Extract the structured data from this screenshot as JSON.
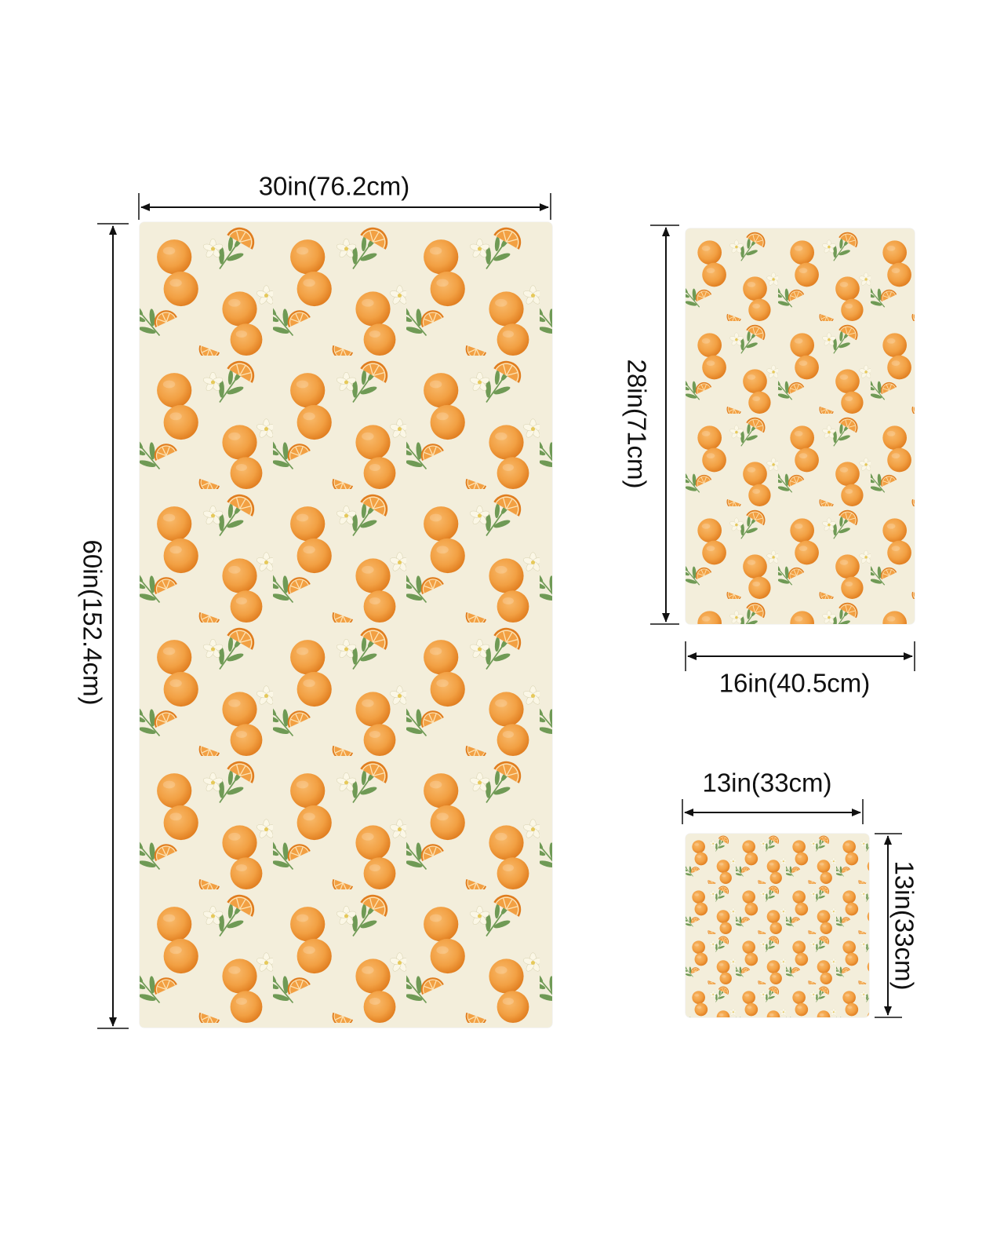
{
  "towels": {
    "bath": {
      "width_label": "30in(76.2cm)",
      "height_label": "60in(152.4cm)"
    },
    "hand": {
      "height_label": "28in(71cm)",
      "width_label": "16in(40.5cm)"
    },
    "washcloth": {
      "width_label": "13in(33cm)",
      "height_label": "13in(33cm)"
    }
  },
  "pattern": {
    "background_color": "#f3eedb",
    "orange_color": "#f2a043",
    "orange_shade_color": "#e07d1f",
    "leaf_color": "#6f9a55",
    "flower_color": "#fbf7e6",
    "flower_center_color": "#e6c95a",
    "slice_pith_color": "#fde3b4"
  },
  "arrow_color": "#111111"
}
